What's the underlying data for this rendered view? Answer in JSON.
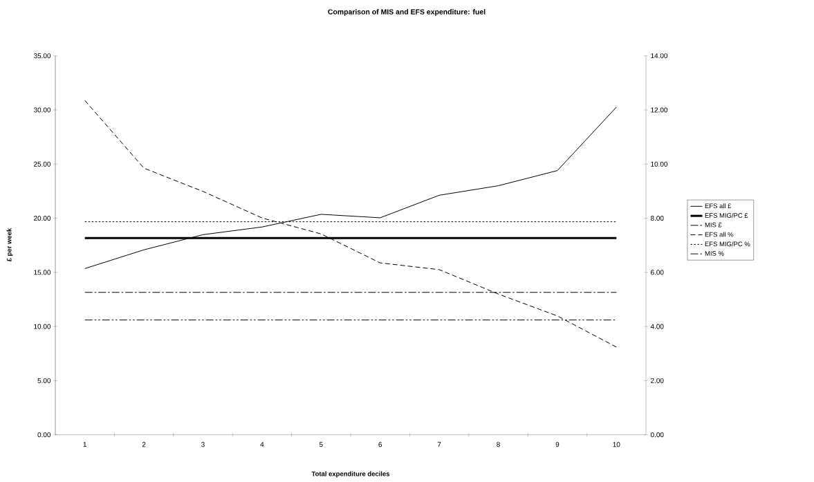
{
  "chart_data": {
    "type": "line",
    "title": "Comparison of MIS and EFS expenditure: fuel",
    "xlabel": "Total expenditure deciles",
    "ylabel": "£ per week",
    "categories": [
      "1",
      "2",
      "3",
      "4",
      "5",
      "6",
      "7",
      "8",
      "9",
      "10"
    ],
    "series": [
      {
        "name": "EFS all £",
        "color": "#000000",
        "line_style": "solid",
        "values": [
          15.35,
          17.08,
          18.48,
          19.19,
          20.36,
          20.04,
          22.12,
          23.0,
          24.4,
          30.26
        ]
      },
      {
        "name": "EFS MIG/PC £",
        "color": "#000000",
        "line_style": "solid",
        "values": [
          18.16,
          18.16,
          18.16,
          18.16,
          18.16,
          18.16,
          18.16,
          18.16,
          18.16,
          18.16
        ]
      },
      {
        "name": "MIS £",
        "color": "#000000",
        "line_style": "dashdotdot",
        "values": [
          10.6,
          10.6,
          10.6,
          10.6,
          10.6,
          10.6,
          10.6,
          10.6,
          10.6,
          10.6
        ]
      },
      {
        "name": "EFS all %",
        "color": "#000000",
        "line_style": "dashed",
        "axis": "y2",
        "values": [
          12.35,
          9.85,
          8.99,
          8.01,
          7.42,
          6.35,
          6.1,
          5.2,
          4.39,
          3.24
        ]
      },
      {
        "name": "EFS MIG/PC %",
        "color": "#000000",
        "line_style": "dotted",
        "axis": "y2",
        "values": [
          7.87,
          7.87,
          7.87,
          7.87,
          7.87,
          7.87,
          7.87,
          7.87,
          7.87,
          7.87
        ]
      },
      {
        "name": "MIS %",
        "color": "#000000",
        "line_style": "dashdot",
        "axis": "y2",
        "values": [
          5.26,
          5.26,
          5.26,
          5.26,
          5.26,
          5.26,
          5.26,
          5.26,
          5.26,
          5.26
        ]
      }
    ],
    "ylim": [
      0,
      35
    ],
    "yticks": [
      {
        "value": 0,
        "label": "0.00"
      },
      {
        "value": 5,
        "label": "5.00"
      },
      {
        "value": 10,
        "label": "10.00"
      },
      {
        "value": 15,
        "label": "15.00"
      },
      {
        "value": 20,
        "label": "20.00"
      },
      {
        "value": 25,
        "label": "25.00"
      },
      {
        "value": 30,
        "label": "30.00"
      },
      {
        "value": 35,
        "label": "35.00"
      }
    ],
    "y2lim": [
      0,
      14
    ],
    "y2ticks": [
      {
        "value": 0,
        "label": "0.00"
      },
      {
        "value": 2,
        "label": "2.00"
      },
      {
        "value": 4,
        "label": "4.00"
      },
      {
        "value": 6,
        "label": "6.00"
      },
      {
        "value": 8,
        "label": "8.00"
      },
      {
        "value": 10,
        "label": "10.00"
      },
      {
        "value": 12,
        "label": "12.00"
      },
      {
        "value": 14,
        "label": "14.00"
      }
    ],
    "legend": "right",
    "grid": false,
    "marker": "none"
  }
}
